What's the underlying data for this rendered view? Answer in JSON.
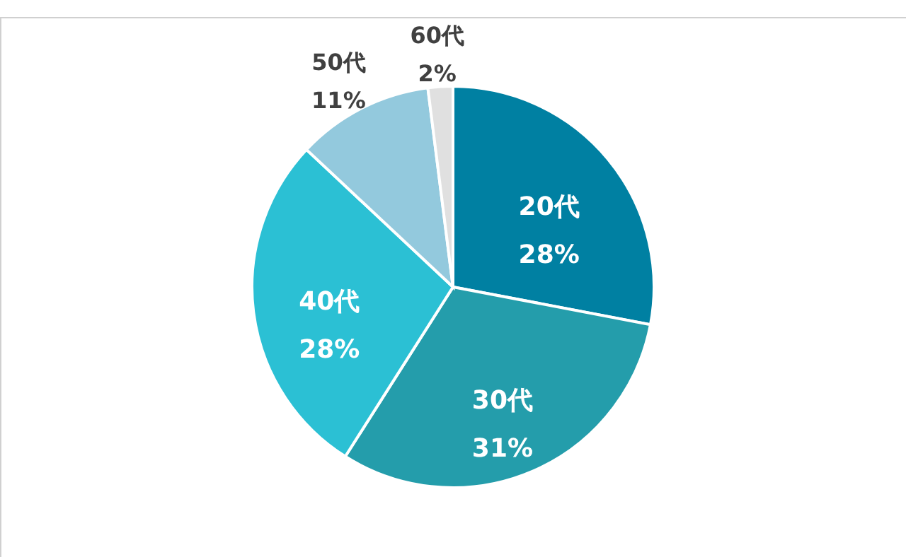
{
  "chart_data": {
    "type": "pie",
    "categories": [
      "20代",
      "30代",
      "40代",
      "50代",
      "60代"
    ],
    "values": [
      28,
      31,
      28,
      11,
      2
    ],
    "colors": [
      "#0080a2",
      "#249dab",
      "#2bc0d4",
      "#93c9dd",
      "#e0e0e0"
    ],
    "value_labels": [
      "28%",
      "31%",
      "28%",
      "11%",
      "2%"
    ]
  }
}
